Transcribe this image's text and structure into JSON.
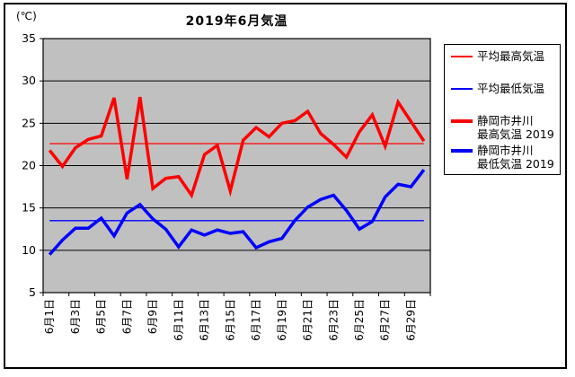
{
  "chart_data": {
    "type": "line",
    "title": "2019年6月気温",
    "y_unit": "(℃)",
    "ylim": [
      5,
      35
    ],
    "y_tick_step": 5,
    "y_ticks": [
      35,
      30,
      25,
      20,
      15,
      10,
      5
    ],
    "grid": true,
    "plot_bg": "#C0C0C0",
    "legend_position": "right",
    "days": 30,
    "x_tick_labels": [
      "6月1日",
      "6月3日",
      "6月5日",
      "6月7日",
      "6月9日",
      "6月11日",
      "6月13日",
      "6月15日",
      "6月17日",
      "6月19日",
      "6月21日",
      "6月23日",
      "6月25日",
      "6月27日",
      "6月29日"
    ],
    "series": [
      {
        "key": "avg-max",
        "name": "平均最高気温",
        "color": "#FF0000",
        "width": 1.3,
        "constant": 22.6
      },
      {
        "key": "avg-min",
        "name": "平均最低気温",
        "color": "#0000FF",
        "width": 1.3,
        "constant": 13.5
      },
      {
        "key": "max-2019",
        "name": "静岡市井川 最高気温 2019",
        "color": "#FF0000",
        "width": 3.5,
        "values": [
          21.8,
          19.9,
          22.1,
          23.1,
          23.5,
          28.0,
          18.4,
          28.1,
          17.3,
          18.5,
          18.7,
          16.5,
          21.3,
          22.4,
          17.0,
          23.0,
          24.5,
          23.4,
          25.0,
          25.3,
          26.4,
          23.8,
          22.5,
          21.0,
          24.0,
          26.0,
          22.3,
          27.5,
          25.2,
          22.9
        ]
      },
      {
        "key": "min-2019",
        "name": "静岡市井川 最低気温 2019",
        "color": "#0000FF",
        "width": 3.5,
        "values": [
          9.5,
          11.2,
          12.6,
          12.6,
          13.8,
          11.7,
          14.4,
          15.4,
          13.7,
          12.5,
          10.4,
          12.4,
          11.8,
          12.4,
          12.0,
          12.2,
          10.3,
          11.0,
          11.4,
          13.5,
          15.1,
          16.0,
          16.5,
          14.7,
          12.5,
          13.4,
          16.3,
          17.8,
          17.5,
          19.5
        ]
      }
    ]
  },
  "legend": {
    "items": [
      {
        "label": "平均最高気温",
        "swatch": "thin red"
      },
      {
        "label": "平均最低気温",
        "swatch": "thin blue"
      },
      {
        "label": "静岡市井川\n最高気温 2019",
        "swatch": "thick red"
      },
      {
        "label": "静岡市井川\n最低気温 2019",
        "swatch": "thick blue"
      }
    ]
  }
}
